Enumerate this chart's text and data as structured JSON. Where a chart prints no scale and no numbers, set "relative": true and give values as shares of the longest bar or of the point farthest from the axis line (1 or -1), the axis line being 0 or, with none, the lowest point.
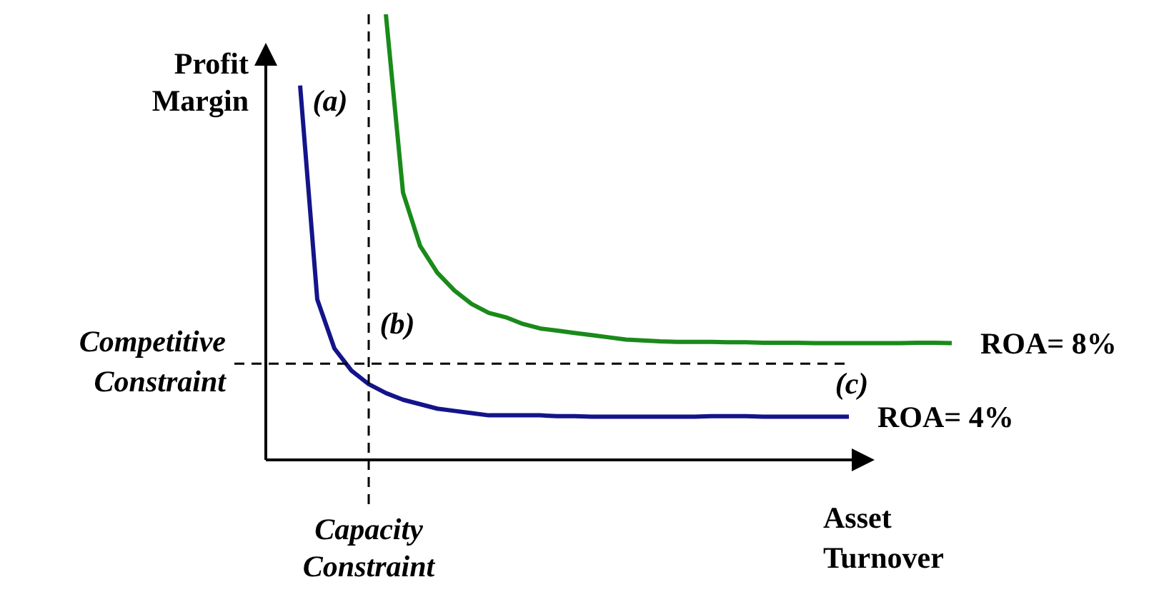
{
  "chart_data": {
    "type": "line",
    "relative": true,
    "xlabel": "Asset Turnover",
    "ylabel": "Profit Margin",
    "categories": [
      null,
      null,
      null,
      null,
      null,
      null,
      null,
      null,
      null,
      null,
      null,
      null,
      null,
      null,
      null,
      null,
      null,
      null,
      null,
      null,
      null,
      null,
      null,
      null,
      null,
      null,
      null,
      null,
      null,
      null,
      null,
      null,
      null,
      null,
      null,
      null,
      null,
      null,
      null,
      null
    ],
    "series": [
      {
        "name": "ROA= 8%",
        "color": "#1a8a1a",
        "values": [
          null,
          null,
          null,
          null,
          null,
          null,
          1.0,
          0.6,
          0.48,
          0.42,
          0.38,
          0.35,
          0.33,
          0.32,
          0.305,
          0.295,
          0.29,
          0.285,
          0.28,
          0.275,
          0.27,
          0.268,
          0.266,
          0.265,
          0.265,
          0.265,
          0.264,
          0.264,
          0.263,
          0.263,
          0.263,
          0.262,
          0.262,
          0.262,
          0.262,
          0.262,
          0.262,
          0.263,
          0.263,
          0.262
        ]
      },
      {
        "name": "ROA= 4%",
        "color": "#14148a",
        "values": [
          null,
          0.84,
          0.36,
          0.25,
          0.2,
          0.17,
          0.15,
          0.135,
          0.125,
          0.115,
          0.11,
          0.105,
          0.1,
          0.1,
          0.1,
          0.1,
          0.098,
          0.098,
          0.097,
          0.097,
          0.097,
          0.097,
          0.097,
          0.097,
          0.097,
          0.098,
          0.098,
          0.098,
          0.097,
          0.097,
          0.097,
          0.097,
          0.097,
          0.097,
          null,
          null,
          null,
          null,
          null,
          null
        ]
      }
    ],
    "ref_lines": [
      {
        "axis": "y",
        "value": 0.216,
        "label": "Competitive Constraint",
        "color": "#000000",
        "line_style": "dashed"
      }
    ],
    "annotations": [
      "(a)",
      "(b)",
      "(c)",
      "Capacity Constraint"
    ]
  }
}
